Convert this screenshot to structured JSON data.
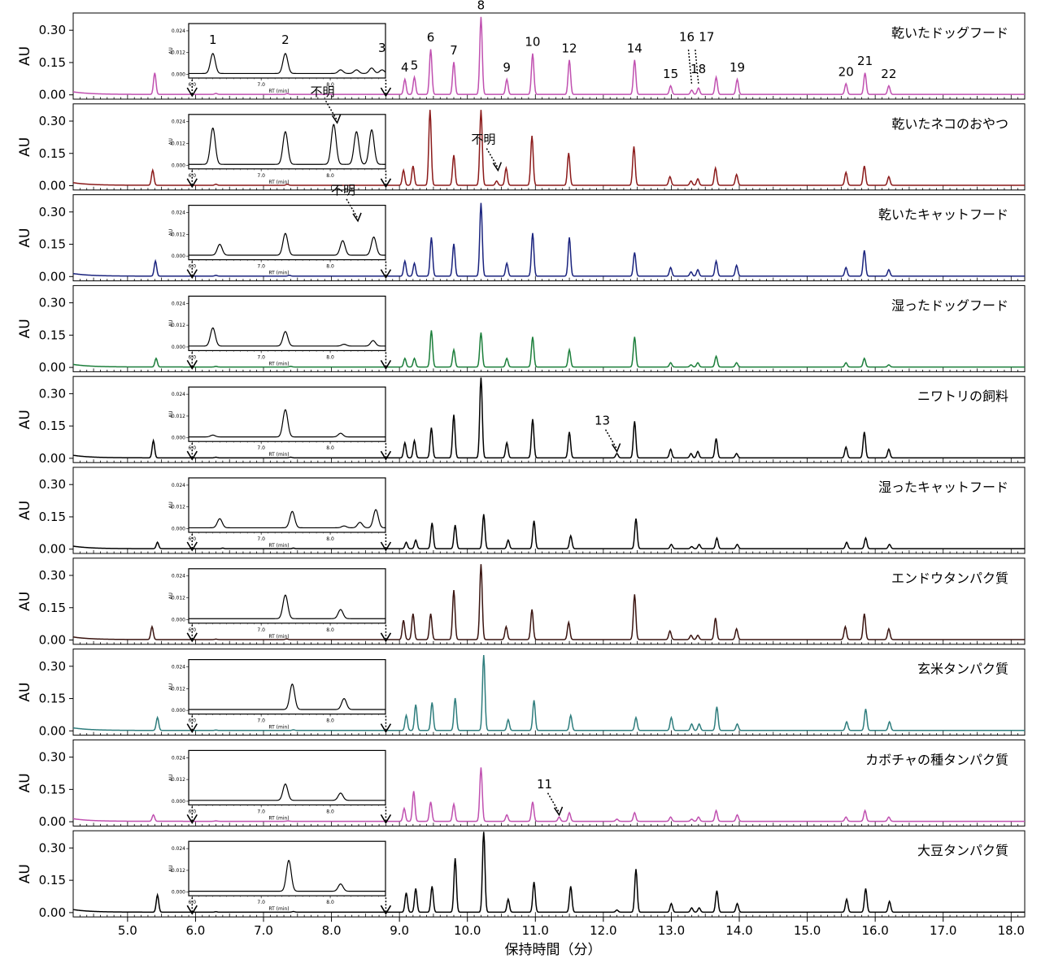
{
  "chart_data": {
    "type": "line",
    "xlabel": "保持時間（分）",
    "ylabel": "AU",
    "xlim": [
      4.2,
      18.2
    ],
    "ylim": [
      -0.02,
      0.38
    ],
    "x_ticks": [
      "5.0",
      "6.0",
      "7.0",
      "8.0",
      "9.0",
      "10.0",
      "11.0",
      "12.0",
      "13.0",
      "14.0",
      "15.0",
      "16.0",
      "17.0",
      "18.0"
    ],
    "y_ticks": [
      "0.00",
      "0.15",
      "0.30"
    ],
    "inset": {
      "xlim": [
        5.95,
        8.8
      ],
      "ylim": [
        -0.002,
        0.028
      ],
      "y_ticks": [
        "0.000",
        "0.012",
        "0.024"
      ],
      "x_ticks": [
        "6.0",
        "7.0",
        "8.0"
      ],
      "xlabel": "RT (min)",
      "ylabel": "AU"
    },
    "peak_labels": [
      "1",
      "2",
      "3",
      "4",
      "5",
      "6",
      "7",
      "8",
      "9",
      "10",
      "12",
      "14",
      "15",
      "16",
      "17",
      "18",
      "19",
      "20",
      "21",
      "22"
    ],
    "series": [
      {
        "name": "乾いたドッグフード",
        "color": "#c050b0",
        "peaks": [
          [
            5.4,
            0.1
          ],
          [
            6.3,
            0.005
          ],
          [
            7.35,
            0.004
          ],
          [
            9.08,
            0.07
          ],
          [
            9.22,
            0.08
          ],
          [
            9.46,
            0.21
          ],
          [
            9.8,
            0.15
          ],
          [
            10.2,
            0.36
          ],
          [
            10.58,
            0.07
          ],
          [
            10.96,
            0.19
          ],
          [
            11.5,
            0.16
          ],
          [
            12.46,
            0.16
          ],
          [
            12.99,
            0.04
          ],
          [
            13.3,
            0.02
          ],
          [
            13.4,
            0.03
          ],
          [
            13.66,
            0.08
          ],
          [
            13.97,
            0.07
          ],
          [
            15.57,
            0.05
          ],
          [
            15.85,
            0.1
          ],
          [
            16.2,
            0.04
          ]
        ],
        "inset_peaks": [
          [
            6.3,
            0.011
          ],
          [
            7.35,
            0.011
          ],
          [
            8.15,
            0.002
          ],
          [
            8.38,
            0.002
          ],
          [
            8.6,
            0.003
          ],
          [
            8.75,
            0.002
          ]
        ],
        "annotations": []
      },
      {
        "name": "乾いたネコのおやつ",
        "color": "#8b1a1a",
        "peaks": [
          [
            5.37,
            0.07
          ],
          [
            6.3,
            0.005
          ],
          [
            7.35,
            0.005
          ],
          [
            9.06,
            0.07
          ],
          [
            9.2,
            0.09
          ],
          [
            9.45,
            0.35
          ],
          [
            9.8,
            0.14
          ],
          [
            10.2,
            0.35
          ],
          [
            10.43,
            0.02
          ],
          [
            10.57,
            0.08
          ],
          [
            10.95,
            0.23
          ],
          [
            11.49,
            0.15
          ],
          [
            12.45,
            0.18
          ],
          [
            12.98,
            0.04
          ],
          [
            13.29,
            0.02
          ],
          [
            13.39,
            0.03
          ],
          [
            13.65,
            0.08
          ],
          [
            13.96,
            0.05
          ],
          [
            15.57,
            0.06
          ],
          [
            15.84,
            0.09
          ],
          [
            16.2,
            0.04
          ]
        ],
        "inset_peaks": [
          [
            6.3,
            0.02
          ],
          [
            7.35,
            0.018
          ],
          [
            8.05,
            0.022
          ],
          [
            8.38,
            0.018
          ],
          [
            8.6,
            0.019
          ]
        ],
        "annotations": [
          {
            "text": "不明",
            "x": 8.1,
            "y": 0.022,
            "target": "inset"
          },
          {
            "text": "不明",
            "x": 10.45,
            "y": 0.06,
            "target": "main"
          }
        ]
      },
      {
        "name": "乾いたキャットフード",
        "color": "#1a237e",
        "peaks": [
          [
            5.41,
            0.07
          ],
          [
            6.3,
            0.004
          ],
          [
            7.38,
            0.004
          ],
          [
            9.08,
            0.07
          ],
          [
            9.22,
            0.06
          ],
          [
            9.47,
            0.18
          ],
          [
            9.8,
            0.15
          ],
          [
            10.2,
            0.34
          ],
          [
            10.58,
            0.06
          ],
          [
            10.96,
            0.2
          ],
          [
            11.5,
            0.18
          ],
          [
            12.46,
            0.11
          ],
          [
            12.99,
            0.04
          ],
          [
            13.29,
            0.02
          ],
          [
            13.39,
            0.03
          ],
          [
            13.66,
            0.07
          ],
          [
            13.96,
            0.05
          ],
          [
            15.57,
            0.04
          ],
          [
            15.84,
            0.12
          ],
          [
            16.2,
            0.03
          ]
        ],
        "inset_peaks": [
          [
            6.4,
            0.006
          ],
          [
            7.35,
            0.012
          ],
          [
            8.18,
            0.008
          ],
          [
            8.63,
            0.01
          ]
        ],
        "annotations": [
          {
            "text": "不明",
            "x": 8.4,
            "y": 0.018,
            "target": "inset"
          }
        ]
      },
      {
        "name": "湿ったドッグフード",
        "color": "#1b7e3a",
        "peaks": [
          [
            5.42,
            0.04
          ],
          [
            6.3,
            0.003
          ],
          [
            7.4,
            0.003
          ],
          [
            9.08,
            0.04
          ],
          [
            9.22,
            0.04
          ],
          [
            9.47,
            0.17
          ],
          [
            9.8,
            0.08
          ],
          [
            10.2,
            0.16
          ],
          [
            10.58,
            0.04
          ],
          [
            10.96,
            0.14
          ],
          [
            11.5,
            0.08
          ],
          [
            12.46,
            0.14
          ],
          [
            12.99,
            0.02
          ],
          [
            13.29,
            0.01
          ],
          [
            13.39,
            0.02
          ],
          [
            13.66,
            0.05
          ],
          [
            13.96,
            0.02
          ],
          [
            15.57,
            0.02
          ],
          [
            15.84,
            0.04
          ],
          [
            16.2,
            0.01
          ]
        ],
        "inset_peaks": [
          [
            6.3,
            0.01
          ],
          [
            7.35,
            0.008
          ],
          [
            8.2,
            0.001
          ],
          [
            8.62,
            0.003
          ]
        ],
        "annotations": []
      },
      {
        "name": "ニワトリの飼料",
        "color": "#000000",
        "peaks": [
          [
            5.38,
            0.08
          ],
          [
            6.3,
            0.003
          ],
          [
            7.4,
            0.003
          ],
          [
            9.08,
            0.07
          ],
          [
            9.22,
            0.08
          ],
          [
            9.47,
            0.14
          ],
          [
            9.8,
            0.2
          ],
          [
            10.2,
            0.38
          ],
          [
            10.58,
            0.07
          ],
          [
            10.96,
            0.18
          ],
          [
            11.5,
            0.12
          ],
          [
            12.2,
            0.02
          ],
          [
            12.46,
            0.17
          ],
          [
            12.99,
            0.04
          ],
          [
            13.29,
            0.02
          ],
          [
            13.39,
            0.03
          ],
          [
            13.66,
            0.09
          ],
          [
            13.96,
            0.02
          ],
          [
            15.57,
            0.05
          ],
          [
            15.84,
            0.12
          ],
          [
            16.2,
            0.04
          ]
        ],
        "inset_peaks": [
          [
            6.3,
            0.001
          ],
          [
            7.35,
            0.015
          ],
          [
            8.15,
            0.002
          ]
        ],
        "annotations": [
          {
            "text": "13",
            "x": 12.2,
            "y": 0.02,
            "target": "main"
          }
        ]
      },
      {
        "name": "湿ったキャットフード",
        "color": "#000000",
        "peaks": [
          [
            5.44,
            0.03
          ],
          [
            6.4,
            0.003
          ],
          [
            7.44,
            0.003
          ],
          [
            9.1,
            0.03
          ],
          [
            9.24,
            0.04
          ],
          [
            9.48,
            0.12
          ],
          [
            9.82,
            0.11
          ],
          [
            10.24,
            0.16
          ],
          [
            10.6,
            0.04
          ],
          [
            10.98,
            0.13
          ],
          [
            11.52,
            0.06
          ],
          [
            12.48,
            0.14
          ],
          [
            13.0,
            0.02
          ],
          [
            13.3,
            0.01
          ],
          [
            13.41,
            0.02
          ],
          [
            13.67,
            0.05
          ],
          [
            13.97,
            0.02
          ],
          [
            15.58,
            0.03
          ],
          [
            15.86,
            0.05
          ],
          [
            16.21,
            0.02
          ]
        ],
        "inset_peaks": [
          [
            6.4,
            0.005
          ],
          [
            7.45,
            0.009
          ],
          [
            8.2,
            0.001
          ],
          [
            8.43,
            0.003
          ],
          [
            8.66,
            0.01
          ]
        ],
        "annotations": []
      },
      {
        "name": "エンドウタンパク質",
        "color": "#3a1410",
        "peaks": [
          [
            5.36,
            0.06
          ],
          [
            6.3,
            0.002
          ],
          [
            7.34,
            0.003
          ],
          [
            9.06,
            0.09
          ],
          [
            9.2,
            0.12
          ],
          [
            9.46,
            0.12
          ],
          [
            9.8,
            0.23
          ],
          [
            10.2,
            0.35
          ],
          [
            10.57,
            0.06
          ],
          [
            10.95,
            0.14
          ],
          [
            11.49,
            0.08
          ],
          [
            12.46,
            0.21
          ],
          [
            12.98,
            0.04
          ],
          [
            13.29,
            0.02
          ],
          [
            13.39,
            0.02
          ],
          [
            13.65,
            0.1
          ],
          [
            13.96,
            0.05
          ],
          [
            15.56,
            0.06
          ],
          [
            15.84,
            0.12
          ],
          [
            16.2,
            0.05
          ]
        ],
        "inset_peaks": [
          [
            7.35,
            0.013
          ],
          [
            8.15,
            0.005
          ]
        ],
        "annotations": []
      },
      {
        "name": "玄米タンパク質",
        "color": "#2e7d7d",
        "peaks": [
          [
            5.44,
            0.06
          ],
          [
            6.3,
            0.002
          ],
          [
            7.44,
            0.003
          ],
          [
            9.1,
            0.07
          ],
          [
            9.24,
            0.12
          ],
          [
            9.48,
            0.13
          ],
          [
            9.82,
            0.15
          ],
          [
            10.24,
            0.35
          ],
          [
            10.6,
            0.05
          ],
          [
            10.98,
            0.14
          ],
          [
            11.52,
            0.07
          ],
          [
            12.48,
            0.06
          ],
          [
            13.0,
            0.06
          ],
          [
            13.3,
            0.03
          ],
          [
            13.41,
            0.03
          ],
          [
            13.67,
            0.11
          ],
          [
            13.97,
            0.03
          ],
          [
            15.58,
            0.04
          ],
          [
            15.86,
            0.1
          ],
          [
            16.21,
            0.04
          ]
        ],
        "inset_peaks": [
          [
            7.45,
            0.014
          ],
          [
            8.2,
            0.006
          ]
        ],
        "annotations": []
      },
      {
        "name": "カボチャの種タンパク質",
        "color": "#c050b0",
        "peaks": [
          [
            5.38,
            0.03
          ],
          [
            6.3,
            0.002
          ],
          [
            7.36,
            0.002
          ],
          [
            9.07,
            0.06
          ],
          [
            9.21,
            0.14
          ],
          [
            9.46,
            0.09
          ],
          [
            9.8,
            0.08
          ],
          [
            10.2,
            0.25
          ],
          [
            10.58,
            0.03
          ],
          [
            10.96,
            0.09
          ],
          [
            11.35,
            0.02
          ],
          [
            11.5,
            0.04
          ],
          [
            12.2,
            0.01
          ],
          [
            12.46,
            0.04
          ],
          [
            12.99,
            0.02
          ],
          [
            13.3,
            0.01
          ],
          [
            13.4,
            0.02
          ],
          [
            13.66,
            0.05
          ],
          [
            13.97,
            0.03
          ],
          [
            15.57,
            0.02
          ],
          [
            15.85,
            0.05
          ],
          [
            16.2,
            0.02
          ]
        ],
        "inset_peaks": [
          [
            7.35,
            0.009
          ],
          [
            8.15,
            0.004
          ]
        ],
        "annotations": [
          {
            "text": "11",
            "x": 11.35,
            "y": 0.02,
            "target": "main"
          }
        ]
      },
      {
        "name": "大豆タンパク質",
        "color": "#000000",
        "peaks": [
          [
            5.44,
            0.08
          ],
          [
            6.3,
            0.002
          ],
          [
            7.44,
            0.003
          ],
          [
            9.1,
            0.09
          ],
          [
            9.24,
            0.11
          ],
          [
            9.48,
            0.12
          ],
          [
            9.82,
            0.25
          ],
          [
            10.24,
            0.38
          ],
          [
            10.6,
            0.06
          ],
          [
            10.98,
            0.14
          ],
          [
            11.52,
            0.12
          ],
          [
            12.2,
            0.01
          ],
          [
            12.48,
            0.2
          ],
          [
            13.0,
            0.04
          ],
          [
            13.3,
            0.02
          ],
          [
            13.41,
            0.02
          ],
          [
            13.67,
            0.1
          ],
          [
            13.97,
            0.04
          ],
          [
            15.58,
            0.06
          ],
          [
            15.86,
            0.11
          ],
          [
            16.21,
            0.05
          ]
        ],
        "inset_peaks": [
          [
            7.4,
            0.017
          ],
          [
            8.15,
            0.004
          ]
        ],
        "annotations": []
      }
    ]
  }
}
